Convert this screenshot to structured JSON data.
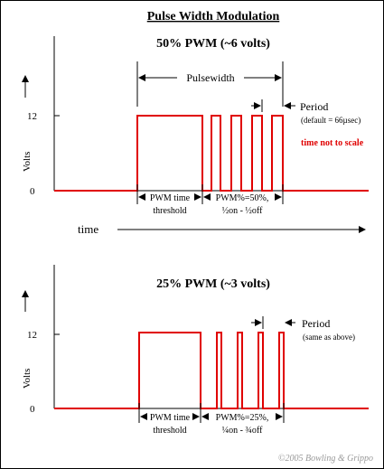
{
  "title": "Pulse Width Modulation",
  "colors": {
    "signal": "#e00000",
    "ink": "#000000",
    "note": "#e00000",
    "credit": "#999999"
  },
  "time_label": "time",
  "credit": "©2005 Bowling & Grippo",
  "top_panel": {
    "heading": "50% PWM (~6 volts)",
    "y_axis_label": "Volts",
    "y_tick_high": "12",
    "y_tick_low": "0",
    "pulsewidth_label": "Pulsewidth",
    "period_label": "Period",
    "period_note": "(default = 66µsec)",
    "scale_note": "time not to scale",
    "threshold_label": [
      "PWM time",
      "threshold"
    ],
    "duty_label": [
      "PWM%=50%,",
      "½on - ½off"
    ],
    "duty_percent": 50
  },
  "bottom_panel": {
    "heading": "25% PWM (~3 volts)",
    "y_axis_label": "Volts",
    "y_tick_high": "12",
    "y_tick_low": "0",
    "period_label": "Period",
    "period_note": "(same as above)",
    "threshold_label": [
      "PWM time",
      "threshold"
    ],
    "duty_label": [
      "PWM%=25%,",
      "¼on - ¾off"
    ],
    "duty_percent": 25
  }
}
